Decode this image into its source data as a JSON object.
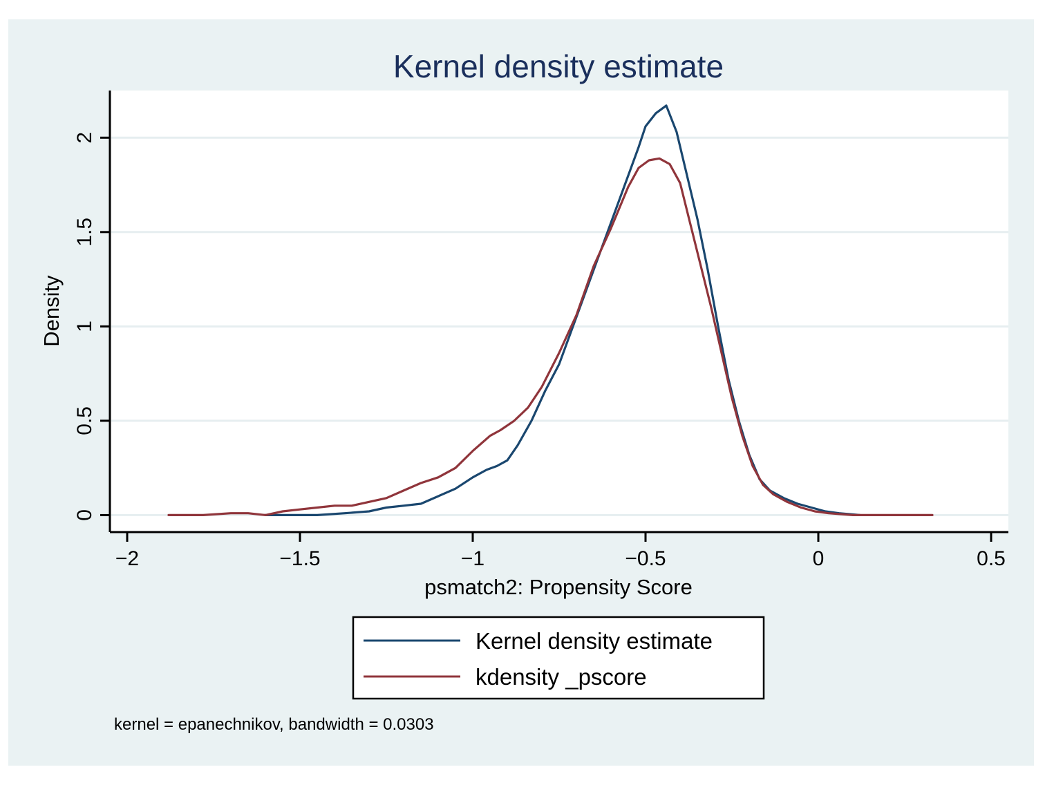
{
  "chart_data": {
    "type": "line",
    "title": "Kernel density estimate",
    "xlabel": "psmatch2: Propensity Score",
    "ylabel": "Density",
    "xlim": [
      -2.05,
      0.55
    ],
    "ylim": [
      -0.09,
      2.25
    ],
    "xticks": [
      -2,
      -1.5,
      -1,
      -0.5,
      0,
      0.5
    ],
    "xtick_labels": [
      "−2",
      "−1.5",
      "−1",
      "−0.5",
      "0",
      "0.5"
    ],
    "yticks": [
      0,
      0.5,
      1,
      1.5,
      2
    ],
    "ytick_labels": [
      "0",
      "0.5",
      "1",
      "1.5",
      "2"
    ],
    "grid": true,
    "legend_position": "bottom",
    "note": "kernel = epanechnikov, bandwidth = 0.0303",
    "colors": {
      "background": "#eaf2f3",
      "plot_bg": "#ffffff",
      "grid": "#e6eef0",
      "title": "#1a2f5c"
    },
    "series": [
      {
        "name": "Kernel density estimate",
        "color": "#1a476f",
        "x": [
          -1.6,
          -1.45,
          -1.37,
          -1.3,
          -1.25,
          -1.2,
          -1.15,
          -1.1,
          -1.05,
          -1.0,
          -0.96,
          -0.93,
          -0.9,
          -0.87,
          -0.83,
          -0.79,
          -0.75,
          -0.7,
          -0.65,
          -0.6,
          -0.55,
          -0.52,
          -0.5,
          -0.47,
          -0.44,
          -0.41,
          -0.38,
          -0.35,
          -0.32,
          -0.29,
          -0.26,
          -0.23,
          -0.2,
          -0.17,
          -0.14,
          -0.1,
          -0.06,
          -0.02,
          0.02,
          0.06,
          0.12
        ],
        "y": [
          0.0,
          0.0,
          0.01,
          0.02,
          0.04,
          0.05,
          0.06,
          0.1,
          0.14,
          0.2,
          0.24,
          0.26,
          0.29,
          0.37,
          0.5,
          0.66,
          0.8,
          1.05,
          1.3,
          1.55,
          1.8,
          1.95,
          2.06,
          2.13,
          2.17,
          2.03,
          1.8,
          1.57,
          1.3,
          1.0,
          0.72,
          0.5,
          0.32,
          0.19,
          0.13,
          0.09,
          0.06,
          0.04,
          0.02,
          0.01,
          0.0
        ]
      },
      {
        "name": "kdensity _pscore",
        "color": "#90353b",
        "x": [
          -1.88,
          -1.78,
          -1.7,
          -1.65,
          -1.6,
          -1.55,
          -1.5,
          -1.45,
          -1.4,
          -1.35,
          -1.3,
          -1.25,
          -1.2,
          -1.15,
          -1.1,
          -1.05,
          -1.0,
          -0.95,
          -0.92,
          -0.88,
          -0.84,
          -0.8,
          -0.75,
          -0.7,
          -0.65,
          -0.6,
          -0.55,
          -0.52,
          -0.49,
          -0.46,
          -0.43,
          -0.4,
          -0.37,
          -0.34,
          -0.31,
          -0.28,
          -0.25,
          -0.22,
          -0.19,
          -0.16,
          -0.13,
          -0.09,
          -0.05,
          -0.01,
          0.03,
          0.1,
          0.2,
          0.33
        ],
        "y": [
          0.0,
          0.0,
          0.01,
          0.01,
          0.0,
          0.02,
          0.03,
          0.04,
          0.05,
          0.05,
          0.07,
          0.09,
          0.13,
          0.17,
          0.2,
          0.25,
          0.34,
          0.42,
          0.45,
          0.5,
          0.57,
          0.68,
          0.86,
          1.06,
          1.32,
          1.52,
          1.74,
          1.84,
          1.88,
          1.89,
          1.86,
          1.76,
          1.54,
          1.32,
          1.1,
          0.86,
          0.62,
          0.42,
          0.26,
          0.16,
          0.11,
          0.07,
          0.04,
          0.02,
          0.01,
          0.0,
          0.0,
          0.0
        ]
      }
    ]
  }
}
